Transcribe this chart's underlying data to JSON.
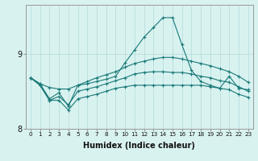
{
  "xlabel": "Humidex (Indice chaleur)",
  "background_color": "#d8f2f0",
  "line_color": "#1a7a78",
  "grid_color": "#b8dedd",
  "x_values": [
    0,
    1,
    2,
    3,
    4,
    5,
    6,
    7,
    8,
    9,
    10,
    11,
    12,
    13,
    14,
    15,
    16,
    17,
    18,
    19,
    20,
    21,
    22,
    23
  ],
  "main_y": [
    8.68,
    8.6,
    8.4,
    8.48,
    8.3,
    8.58,
    8.6,
    8.63,
    8.66,
    8.7,
    8.88,
    9.05,
    9.22,
    9.35,
    9.48,
    9.48,
    9.12,
    8.78,
    8.63,
    8.58,
    8.54,
    8.7,
    8.54,
    8.52
  ],
  "upper_y": [
    8.68,
    8.6,
    8.55,
    8.53,
    8.53,
    8.58,
    8.63,
    8.68,
    8.72,
    8.76,
    8.82,
    8.87,
    8.9,
    8.93,
    8.95,
    8.95,
    8.93,
    8.9,
    8.87,
    8.84,
    8.8,
    8.76,
    8.7,
    8.62
  ],
  "lower_y": [
    8.68,
    8.58,
    8.38,
    8.38,
    8.25,
    8.4,
    8.43,
    8.46,
    8.5,
    8.54,
    8.56,
    8.58,
    8.58,
    8.58,
    8.58,
    8.58,
    8.58,
    8.58,
    8.58,
    8.56,
    8.54,
    8.52,
    8.46,
    8.42
  ],
  "mid_y": [
    8.68,
    8.58,
    8.38,
    8.43,
    8.32,
    8.5,
    8.53,
    8.56,
    8.6,
    8.64,
    8.68,
    8.73,
    8.75,
    8.76,
    8.76,
    8.75,
    8.75,
    8.73,
    8.7,
    8.68,
    8.64,
    8.62,
    8.56,
    8.5
  ],
  "ylim": [
    8.0,
    9.65
  ],
  "yticks": [
    8,
    9
  ],
  "xlim": [
    -0.5,
    23.5
  ]
}
